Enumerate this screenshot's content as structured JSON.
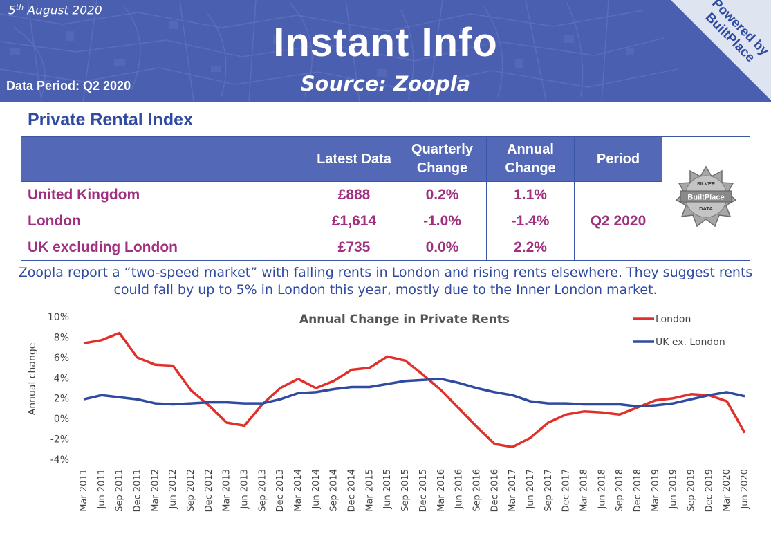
{
  "header": {
    "date_main": "5",
    "date_sup": "th",
    "date_rest": " August 2020",
    "title": "Instant Info",
    "source": "Source: Zoopla",
    "data_period": "Data Period: Q2 2020",
    "powered_line1": "Powered by",
    "powered_line2": "BuiltPlace",
    "banner_color": "#4a5fb0",
    "corner_color": "#dfe4f1"
  },
  "section_title": "Private Rental Index",
  "table": {
    "headers": [
      "Latest Data",
      "Quarterly Change",
      "Annual Change",
      "Period"
    ],
    "rows": [
      {
        "region": "United Kingdom",
        "latest": "£888",
        "quarterly": "0.2%",
        "annual": "1.1%"
      },
      {
        "region": "London",
        "latest": "£1,614",
        "quarterly": "-1.0%",
        "annual": "-1.4%"
      },
      {
        "region": "UK excluding London",
        "latest": "£735",
        "quarterly": "0.0%",
        "annual": "2.2%"
      }
    ],
    "period": "Q2 2020",
    "badge": {
      "top": "SILVER",
      "middle": "BuiltPlace",
      "bottom": "DATA"
    },
    "header_color": "#5468b8",
    "text_color": "#a0307f"
  },
  "commentary": "Zoopla report a “two-speed market” with falling rents in London and rising rents elsewhere. They suggest rents could fall by up to 5% in London this year, mostly due to the Inner London market.",
  "chart_data": {
    "type": "line",
    "title": "Annual Change in Private Rents",
    "xlabel": "",
    "ylabel": "Annual change",
    "ylim": [
      -4,
      10
    ],
    "yticks": [
      "10%",
      "8%",
      "6%",
      "4%",
      "2%",
      "0%",
      "-2%",
      "-4%"
    ],
    "ytick_values": [
      10,
      8,
      6,
      4,
      2,
      0,
      -2,
      -4
    ],
    "categories": [
      "Mar 2011",
      "Jun 2011",
      "Sep 2011",
      "Dec 2011",
      "Mar 2012",
      "Jun 2012",
      "Sep 2012",
      "Dec 2012",
      "Mar 2013",
      "Jun 2013",
      "Sep 2013",
      "Dec 2013",
      "Mar 2014",
      "Jun 2014",
      "Sep 2014",
      "Dec 2014",
      "Mar 2015",
      "Jun 2015",
      "Sep 2015",
      "Dec 2015",
      "Mar 2016",
      "Jun 2016",
      "Sep 2016",
      "Dec 2016",
      "Mar 2017",
      "Jun 2017",
      "Sep 2017",
      "Dec 2017",
      "Mar 2018",
      "Jun 2018",
      "Sep 2018",
      "Dec 2018",
      "Mar 2019",
      "Jun 2019",
      "Sep 2019",
      "Dec 2019",
      "Mar 2020",
      "Jun 2020"
    ],
    "series": [
      {
        "name": "London",
        "color": "#e0302a",
        "values": [
          7.4,
          7.7,
          8.4,
          6.0,
          5.3,
          5.2,
          2.8,
          1.3,
          -0.4,
          -0.7,
          1.4,
          3.0,
          3.9,
          3.0,
          3.7,
          4.8,
          5.0,
          6.1,
          5.7,
          4.3,
          2.8,
          1.0,
          -0.8,
          -2.5,
          -2.8,
          -1.9,
          -0.4,
          0.4,
          0.7,
          0.6,
          0.4,
          1.1,
          1.8,
          2.0,
          2.4,
          2.3,
          1.7,
          -1.4
        ]
      },
      {
        "name": "UK ex. London",
        "color": "#2f4aa0",
        "values": [
          1.9,
          2.3,
          2.1,
          1.9,
          1.5,
          1.4,
          1.5,
          1.6,
          1.6,
          1.5,
          1.5,
          1.9,
          2.5,
          2.6,
          2.9,
          3.1,
          3.1,
          3.4,
          3.7,
          3.8,
          3.9,
          3.5,
          3.0,
          2.6,
          2.3,
          1.7,
          1.5,
          1.5,
          1.4,
          1.4,
          1.4,
          1.2,
          1.3,
          1.5,
          1.9,
          2.3,
          2.6,
          2.2
        ]
      }
    ],
    "legend_position": "top-right",
    "grid": false
  }
}
